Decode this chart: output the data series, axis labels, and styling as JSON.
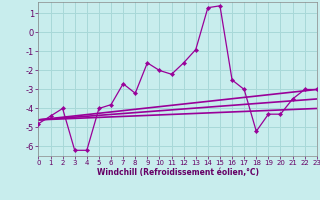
{
  "background_color": "#c8eded",
  "grid_color": "#a8d8d8",
  "line_color": "#990099",
  "xlim": [
    0,
    23
  ],
  "ylim": [
    -6.5,
    1.6
  ],
  "yticks": [
    1,
    0,
    -1,
    -2,
    -3,
    -4,
    -5,
    -6
  ],
  "xticks": [
    0,
    1,
    2,
    3,
    4,
    5,
    6,
    7,
    8,
    9,
    10,
    11,
    12,
    13,
    14,
    15,
    16,
    17,
    18,
    19,
    20,
    21,
    22,
    23
  ],
  "xlabel": "Windchill (Refroidissement éolien,°C)",
  "series_main": {
    "x": [
      0,
      1,
      2,
      3,
      4,
      5,
      6,
      7,
      8,
      9,
      10,
      11,
      12,
      13,
      14,
      15,
      16,
      17,
      18,
      19,
      20,
      21,
      22,
      23
    ],
    "y": [
      -4.8,
      -4.4,
      -4.0,
      -6.2,
      -6.2,
      -4.0,
      -3.8,
      -2.7,
      -3.2,
      -1.6,
      -2.0,
      -2.2,
      -1.6,
      -0.9,
      1.3,
      1.4,
      -2.5,
      -3.0,
      -5.2,
      -4.3,
      -4.3,
      -3.5,
      -3.0,
      -3.0
    ]
  },
  "series_lines": [
    {
      "x": [
        0,
        23
      ],
      "y": [
        -4.6,
        -3.0
      ]
    },
    {
      "x": [
        0,
        23
      ],
      "y": [
        -4.6,
        -3.5
      ]
    },
    {
      "x": [
        0,
        23
      ],
      "y": [
        -4.6,
        -4.0
      ]
    }
  ]
}
